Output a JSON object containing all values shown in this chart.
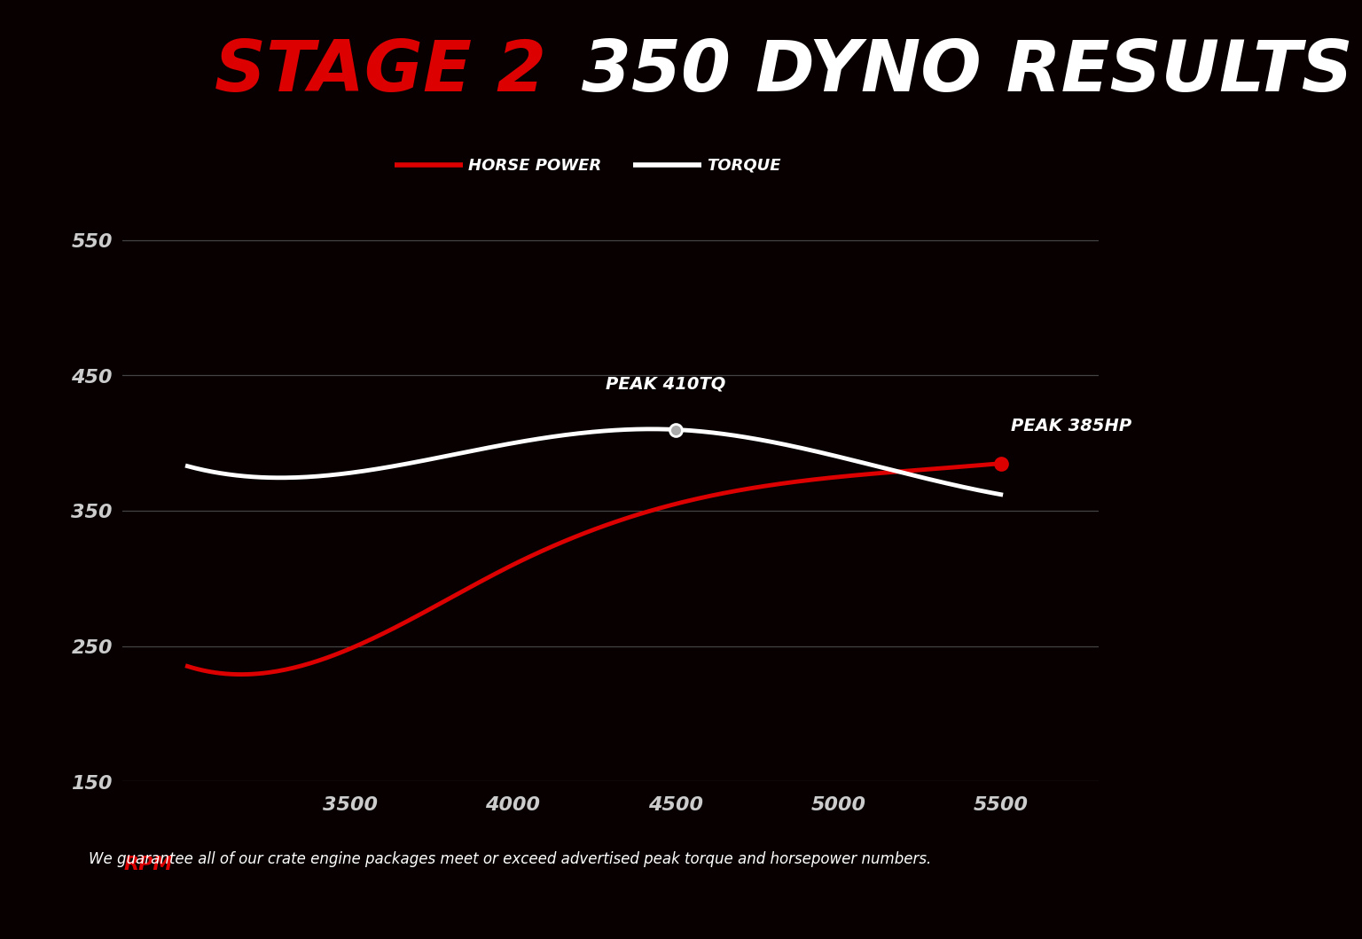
{
  "title_red": "STAGE 2 ",
  "title_white": "350 DYNO RESULTS",
  "background_color": "#080000",
  "footer_bg_color": "#120000",
  "footer_text": "We guarantee all of our crate engine packages meet or exceed advertised peak torque and horsepower numbers.",
  "legend_hp_label": "HORSE POWER",
  "legend_tq_label": "TORQUE",
  "rpm_values": [
    3000,
    3500,
    4000,
    4500,
    5000,
    5500
  ],
  "hp_values": [
    235,
    248,
    310,
    355,
    375,
    385
  ],
  "tq_values": [
    383,
    378,
    400,
    410,
    390,
    362
  ],
  "hp_color": "#dd0000",
  "tq_color": "#ffffff",
  "grid_color": "#444444",
  "tick_color": "#cccccc",
  "rpm_label_color": "#dd0000",
  "ylim": [
    150,
    570
  ],
  "yticks": [
    150,
    250,
    350,
    450,
    550
  ],
  "xlim": [
    2800,
    5800
  ],
  "xticks": [
    3500,
    4000,
    4500,
    5000,
    5500
  ],
  "peak_tq_rpm": 4500,
  "peak_tq_val": 410,
  "peak_hp_rpm": 5500,
  "peak_hp_val": 385,
  "peak_tq_label": "PEAK 410TQ",
  "peak_hp_label": "PEAK 385HP",
  "line_width": 3.5,
  "annotation_fontsize": 14,
  "title_fontsize": 58,
  "legend_fontsize": 13,
  "tick_fontsize": 16,
  "footer_fontsize": 12
}
